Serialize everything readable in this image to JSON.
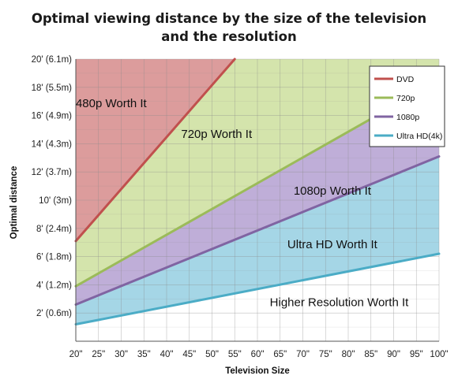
{
  "chart_data": {
    "type": "area",
    "title_line1": "Optimal viewing distance by the size of the television",
    "title_line2": "and the resolution",
    "xlabel": "Television Size",
    "ylabel": "Optimal distance",
    "x_ticks": [
      {
        "value": 20,
        "label": "20\""
      },
      {
        "value": 25,
        "label": "25\""
      },
      {
        "value": 30,
        "label": "30\""
      },
      {
        "value": 35,
        "label": "35\""
      },
      {
        "value": 40,
        "label": "40\""
      },
      {
        "value": 45,
        "label": "45\""
      },
      {
        "value": 50,
        "label": "50\""
      },
      {
        "value": 55,
        "label": "55\""
      },
      {
        "value": 60,
        "label": "60\""
      },
      {
        "value": 65,
        "label": "65\""
      },
      {
        "value": 70,
        "label": "70\""
      },
      {
        "value": 75,
        "label": "75\""
      },
      {
        "value": 80,
        "label": "80\""
      },
      {
        "value": 85,
        "label": "85\""
      },
      {
        "value": 90,
        "label": "90\""
      },
      {
        "value": 95,
        "label": "95\""
      },
      {
        "value": 100,
        "label": "100\""
      }
    ],
    "y_ticks": [
      {
        "value": 2,
        "label": "2' (0.6m)"
      },
      {
        "value": 4,
        "label": "4' (1.2m)"
      },
      {
        "value": 6,
        "label": "6' (1.8m)"
      },
      {
        "value": 8,
        "label": "8' (2.4m)"
      },
      {
        "value": 10,
        "label": "10' (3m)"
      },
      {
        "value": 12,
        "label": "12' (3.7m)"
      },
      {
        "value": 14,
        "label": "14' (4.3m)"
      },
      {
        "value": 16,
        "label": "16' (4.9m)"
      },
      {
        "value": 18,
        "label": "18' (5.5m)"
      },
      {
        "value": 20,
        "label": "20' (6.1m)"
      }
    ],
    "xlim": [
      20,
      100
    ],
    "ylim": [
      0,
      20
    ],
    "grid": true,
    "legend_position": "top-right",
    "series": [
      {
        "name": "DVD",
        "color": "#c0504d",
        "x": [
          20,
          55
        ],
        "y": [
          7.1,
          20
        ]
      },
      {
        "name": "720p",
        "color": "#9bbb59",
        "x": [
          20,
          100
        ],
        "y": [
          3.9,
          18.5
        ]
      },
      {
        "name": "1080p",
        "color": "#8064a2",
        "x": [
          20,
          100
        ],
        "y": [
          2.6,
          13.1
        ]
      },
      {
        "name": "Ultra HD(4k)",
        "color": "#4bacc6",
        "x": [
          20,
          100
        ],
        "y": [
          1.2,
          6.2
        ]
      }
    ],
    "region_colors": {
      "dvd": "#dc9c9c",
      "p720": "#d4e4ac",
      "p1080": "#bfaed8",
      "uhd": "#a5d6e6"
    },
    "annotations": [
      {
        "text": "480p Worth It",
        "x": 27.8,
        "y": 16.6
      },
      {
        "text": "720p Worth It",
        "x": 51,
        "y": 14.4
      },
      {
        "text": "1080p Worth It",
        "x": 76.5,
        "y": 10.4
      },
      {
        "text": "Ultra HD Worth It",
        "x": 76.5,
        "y": 6.6
      },
      {
        "text": "Higher Resolution Worth It",
        "x": 78,
        "y": 2.5
      }
    ]
  }
}
